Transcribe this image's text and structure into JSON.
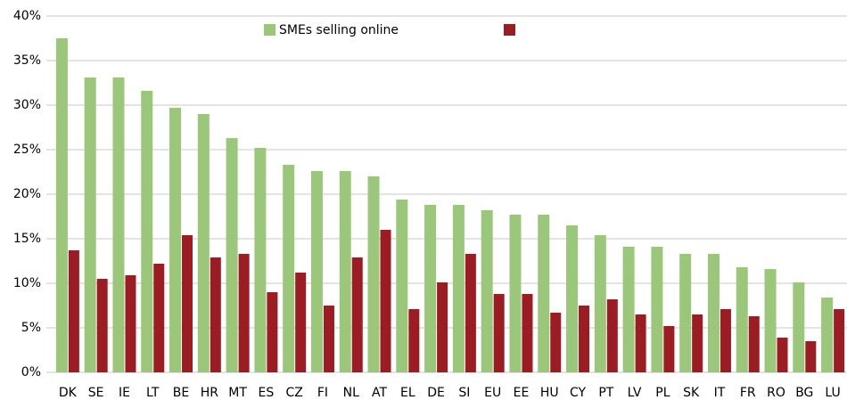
{
  "chart_data": {
    "type": "bar",
    "categories": [
      "DK",
      "SE",
      "IE",
      "LT",
      "BE",
      "HR",
      "MT",
      "ES",
      "CZ",
      "FI",
      "NL",
      "AT",
      "EL",
      "DE",
      "SI",
      "EU",
      "EE",
      "HU",
      "CY",
      "PT",
      "LV",
      "PL",
      "SK",
      "IT",
      "FR",
      "RO",
      "BG",
      "LU"
    ],
    "series": [
      {
        "name": "SMEs selling online",
        "color": "#9bc77a",
        "values": [
          37.5,
          33.1,
          33.1,
          31.6,
          29.7,
          29.0,
          26.3,
          25.2,
          23.3,
          22.6,
          22.6,
          22.0,
          19.4,
          18.8,
          18.8,
          18.2,
          17.7,
          17.7,
          16.5,
          15.4,
          14.1,
          14.1,
          13.3,
          13.3,
          11.8,
          11.6,
          10.1,
          8.4
        ]
      },
      {
        "color": "#9b1c22",
        "values": [
          13.7,
          10.5,
          10.9,
          12.2,
          15.4,
          12.9,
          13.3,
          9.0,
          11.2,
          7.5,
          12.9,
          16.0,
          7.1,
          10.1,
          13.3,
          8.8,
          8.8,
          6.7,
          7.5,
          8.2,
          6.5,
          5.2,
          6.5,
          7.1,
          6.3,
          3.9,
          3.5,
          7.1
        ]
      }
    ],
    "ylim": [
      0,
      40
    ],
    "yticks": [
      {
        "value": 0,
        "label": "0%"
      },
      {
        "value": 5,
        "label": "5%"
      },
      {
        "value": 10,
        "label": "10%"
      },
      {
        "value": 15,
        "label": "15%"
      },
      {
        "value": 20,
        "label": "20%"
      },
      {
        "value": 25,
        "label": "25%"
      },
      {
        "value": 30,
        "label": "30%"
      },
      {
        "value": 35,
        "label": "35%"
      },
      {
        "value": 40,
        "label": "40%"
      }
    ],
    "grid": true
  }
}
